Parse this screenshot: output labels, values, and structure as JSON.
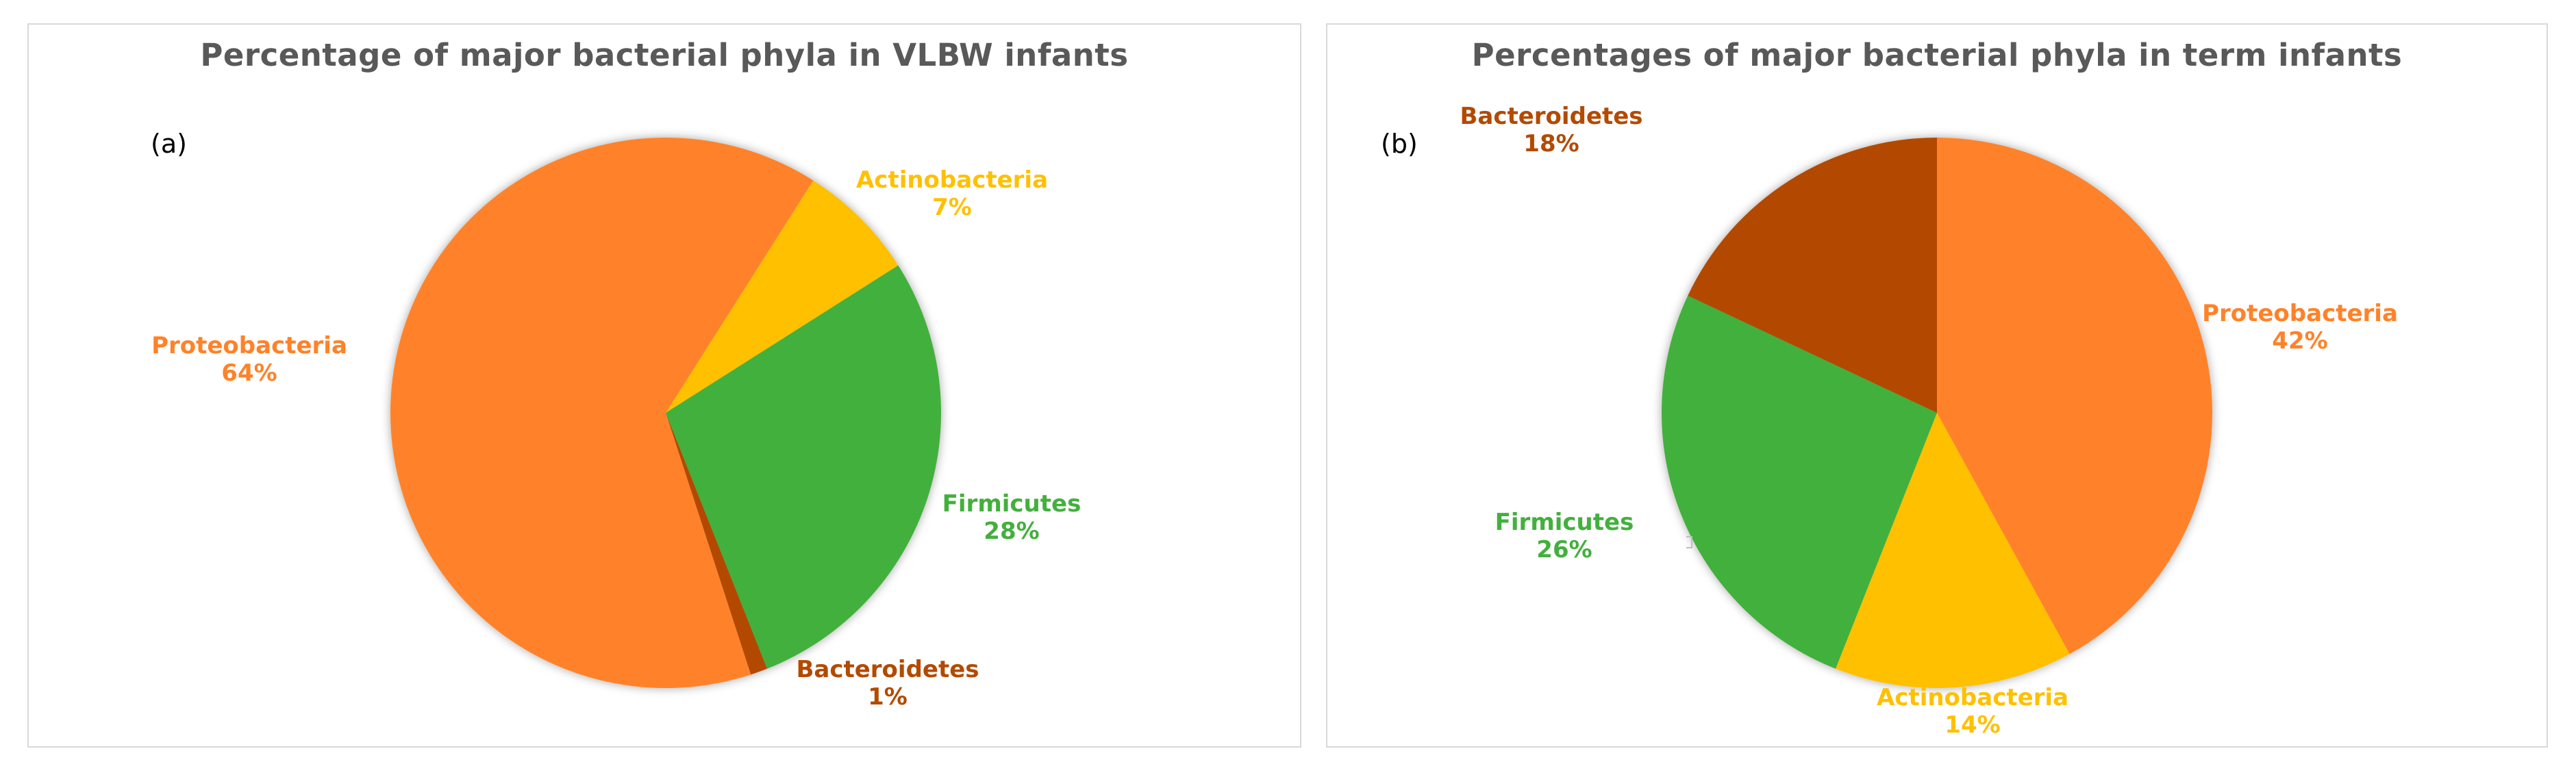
{
  "chart_data": [
    {
      "type": "pie",
      "title": "Percentage of major bacterial phyla in VLBW infants",
      "panel_label": "(a)",
      "slices": [
        {
          "label": "Actinobacteria",
          "value": 7,
          "value_label": "7%",
          "color": "#FFC000"
        },
        {
          "label": "Firmicutes",
          "value": 28,
          "value_label": "28%",
          "color": "#43B03D"
        },
        {
          "label": "Bacteroidetes",
          "value": 1,
          "value_label": "1%",
          "color": "#B34A00"
        },
        {
          "label": "Proteobacteria",
          "value": 64,
          "value_label": "64%",
          "color": "#FF8229"
        }
      ]
    },
    {
      "type": "pie",
      "title": "Percentages of major bacterial phyla in term infants",
      "panel_label": "(b)",
      "slices": [
        {
          "label": "Proteobacteria",
          "value": 42,
          "value_label": "42%",
          "color": "#FF8229"
        },
        {
          "label": "Actinobacteria",
          "value": 14,
          "value_label": "14%",
          "color": "#FFC000"
        },
        {
          "label": "Firmicutes",
          "value": 26,
          "value_label": "26%",
          "color": "#43B03D"
        },
        {
          "label": "Bacteroidetes",
          "value": 18,
          "value_label": "18%",
          "color": "#B34A00"
        }
      ]
    }
  ]
}
